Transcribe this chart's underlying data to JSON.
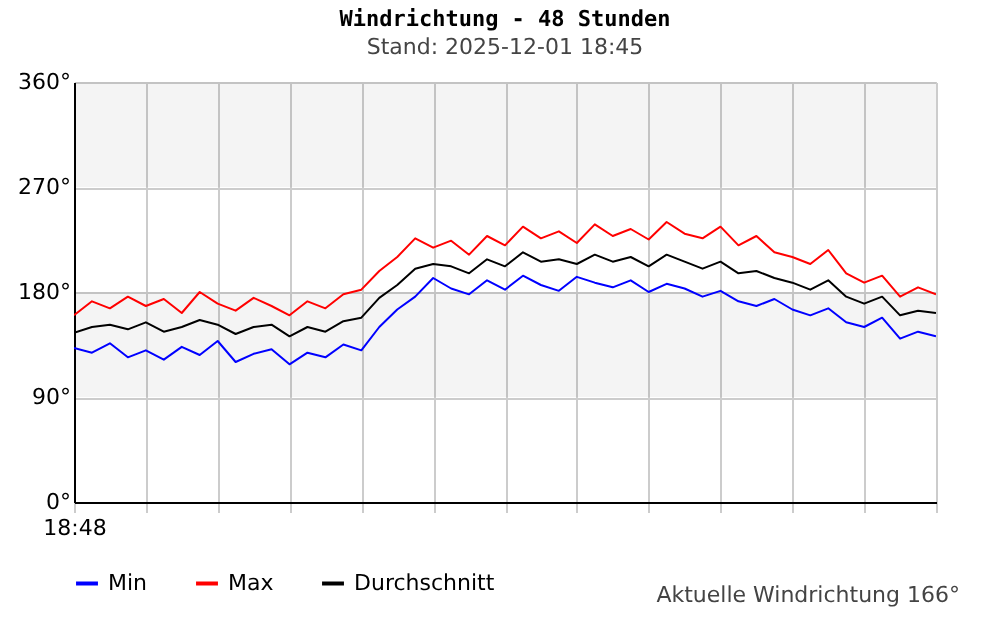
{
  "chart_data": {
    "type": "line",
    "title": "Windrichtung - 48 Stunden",
    "subtitle": "Stand: 2025-12-01 18:45",
    "annotations": [
      "Aktuelle Windrichtung 166°"
    ],
    "categories": [
      "18:48",
      null,
      null,
      null,
      null,
      null,
      null,
      null,
      null,
      null,
      null,
      null,
      null,
      null,
      null,
      null,
      null,
      null,
      null,
      null,
      null,
      null,
      null,
      null,
      null,
      null,
      null,
      null,
      null,
      null,
      null,
      null,
      null,
      null,
      null,
      null,
      null,
      null,
      null,
      null,
      null,
      null,
      null,
      null,
      null,
      null,
      null,
      null,
      null
    ],
    "series": [
      {
        "name": "Min",
        "color": "#0000ff",
        "values": [
          132,
          128,
          136,
          124,
          130,
          122,
          133,
          126,
          138,
          120,
          127,
          131,
          118,
          128,
          124,
          135,
          130,
          150,
          165,
          176,
          192,
          183,
          178,
          190,
          182,
          194,
          186,
          181,
          193,
          188,
          184,
          190,
          180,
          187,
          183,
          176,
          181,
          172,
          168,
          174,
          165,
          160,
          166,
          154,
          150,
          158,
          140,
          146,
          142
        ]
      },
      {
        "name": "Max",
        "color": "#ff0000",
        "values": [
          160,
          172,
          166,
          176,
          168,
          174,
          162,
          180,
          170,
          164,
          175,
          168,
          160,
          172,
          166,
          178,
          182,
          198,
          210,
          226,
          218,
          224,
          212,
          228,
          220,
          236,
          226,
          232,
          222,
          238,
          228,
          234,
          225,
          240,
          230,
          226,
          236,
          220,
          228,
          214,
          210,
          204,
          216,
          196,
          188,
          194,
          176,
          184,
          178
        ]
      },
      {
        "name": "Durchschnitt",
        "color": "#000000",
        "values": [
          145,
          150,
          152,
          148,
          154,
          146,
          150,
          156,
          152,
          144,
          150,
          152,
          142,
          150,
          146,
          155,
          158,
          175,
          186,
          200,
          204,
          202,
          196,
          208,
          202,
          214,
          206,
          208,
          204,
          212,
          206,
          210,
          202,
          212,
          206,
          200,
          206,
          196,
          198,
          192,
          188,
          182,
          190,
          176,
          170,
          176,
          160,
          164,
          162
        ]
      }
    ],
    "ylim": [
      0,
      360
    ],
    "yticks": [
      {
        "value": 0,
        "label": "0°"
      },
      {
        "value": 90,
        "label": "90°"
      },
      {
        "value": 180,
        "label": "180°"
      },
      {
        "value": 270,
        "label": "270°"
      },
      {
        "value": 360,
        "label": "360°"
      }
    ],
    "bands": [
      {
        "axis": "y",
        "from": 90,
        "to": 180,
        "color": "#f4f4f4"
      },
      {
        "axis": "y",
        "from": 270,
        "to": 360,
        "color": "#f4f4f4"
      }
    ],
    "grid": true,
    "legend": "bottom",
    "line_style": "solid",
    "marker": "none"
  }
}
